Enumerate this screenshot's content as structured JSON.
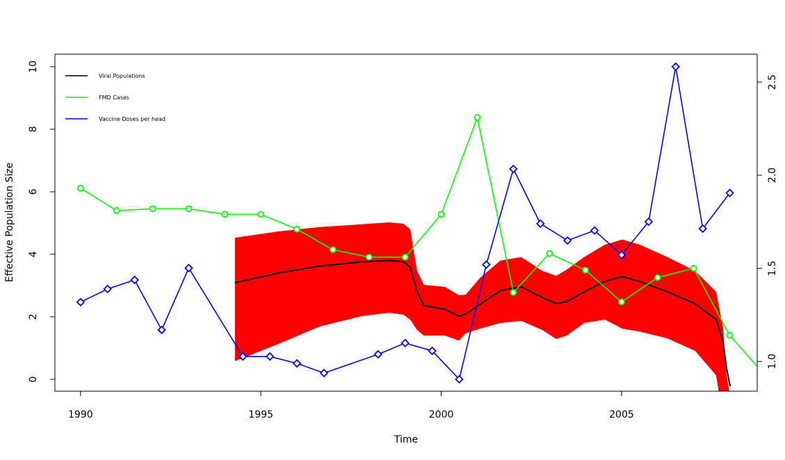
{
  "chart_data": {
    "type": "line",
    "xlabel": "Time",
    "ylabel": "Effective Population Size",
    "xlim": [
      1989.29,
      2008.76
    ],
    "ylim": [
      -0.38,
      10.4
    ],
    "y2lim": [
      0.84,
      2.65
    ],
    "xticks": [
      1990,
      1995,
      2000,
      2005
    ],
    "yticks": [
      0,
      2,
      4,
      6,
      8,
      10
    ],
    "y2ticks": [
      {
        "value": 1.0,
        "label": "1.0"
      },
      1.5,
      {
        "value": 2.0,
        "label": "2.0"
      },
      2.5
    ],
    "legend": "top-left",
    "band": {
      "color": "#ff0000",
      "x": [
        1994.28,
        1995.48,
        1996.63,
        1997.79,
        1998.56,
        1998.95,
        1999.14,
        1999.33,
        1999.52,
        2000.1,
        2000.49,
        2000.68,
        2001.07,
        2001.64,
        2002.22,
        2002.8,
        2003.19,
        2003.48,
        2003.96,
        2004.54,
        2005.02,
        2005.5,
        2006.27,
        2007.04,
        2007.62,
        2007.81,
        2007.91,
        2008.01
      ],
      "upper": [
        4.53,
        4.73,
        4.87,
        4.96,
        5.02,
        4.98,
        4.8,
        3.47,
        3.02,
        2.96,
        2.69,
        2.71,
        3.24,
        3.8,
        3.91,
        3.47,
        3.31,
        3.51,
        3.91,
        4.31,
        4.47,
        4.31,
        3.91,
        3.47,
        2.8,
        1.69,
        0.13,
        -0.53
      ],
      "lower": [
        0.58,
        1.13,
        1.69,
        2.02,
        2.13,
        2.07,
        1.91,
        1.58,
        1.4,
        1.4,
        1.24,
        1.47,
        1.62,
        1.8,
        1.87,
        1.58,
        1.29,
        1.4,
        1.8,
        1.91,
        1.62,
        1.53,
        1.31,
        0.91,
        0.13,
        -1.2,
        -1.64,
        -1.87
      ]
    },
    "series": [
      {
        "name": "Viral Populations",
        "color": "#000000",
        "marker": "none",
        "x": [
          1994.28,
          1995.48,
          1996.63,
          1997.79,
          1998.56,
          1998.95,
          1999.14,
          1999.33,
          1999.52,
          2000.1,
          2000.49,
          2000.68,
          2001.07,
          2001.64,
          2002.22,
          2002.8,
          2003.19,
          2003.48,
          2003.96,
          2004.54,
          2005.02,
          2005.5,
          2006.27,
          2007.04,
          2007.62,
          2007.81,
          2007.91,
          2008.01
        ],
        "values": [
          3.09,
          3.4,
          3.62,
          3.76,
          3.8,
          3.76,
          3.58,
          2.8,
          2.36,
          2.24,
          2.02,
          2.09,
          2.4,
          2.84,
          2.96,
          2.62,
          2.42,
          2.49,
          2.8,
          3.13,
          3.29,
          3.13,
          2.8,
          2.42,
          1.91,
          1.24,
          0.36,
          -0.22
        ]
      },
      {
        "name": "FMD Cases",
        "color": "#00ff00",
        "marker": "circle",
        "axis": "y2",
        "x": [
          1990,
          1991,
          1992,
          1993,
          1994,
          1995,
          1996,
          1997,
          1998,
          1999,
          2000,
          2001,
          2002,
          2003,
          2004,
          2005,
          2006,
          2007,
          2008,
          2009
        ],
        "values": [
          1.93,
          1.81,
          1.82,
          1.82,
          1.79,
          1.79,
          1.71,
          1.6,
          1.56,
          1.56,
          1.79,
          2.31,
          1.37,
          1.58,
          1.49,
          1.32,
          1.45,
          1.5,
          1.14,
          0.92
        ]
      },
      {
        "name": "Vaccine Doses per head",
        "color": "#0000ff",
        "marker": "diamond",
        "x": [
          1990,
          1990.75,
          1991.5,
          1992.25,
          1993,
          1994.5,
          1995.25,
          1996,
          1996.75,
          1998.25,
          1999,
          1999.75,
          2000.5,
          2001.25,
          2002,
          2002.75,
          2003.5,
          2004.25,
          2005,
          2005.75,
          2006.5,
          2007.25,
          2008
        ],
        "values": [
          2.47,
          2.89,
          3.18,
          1.58,
          3.56,
          0.73,
          0.73,
          0.51,
          0.2,
          0.8,
          1.16,
          0.91,
          0,
          3.67,
          6.73,
          4.98,
          4.44,
          4.76,
          3.98,
          5.04,
          10,
          4.82,
          5.96
        ]
      }
    ]
  }
}
